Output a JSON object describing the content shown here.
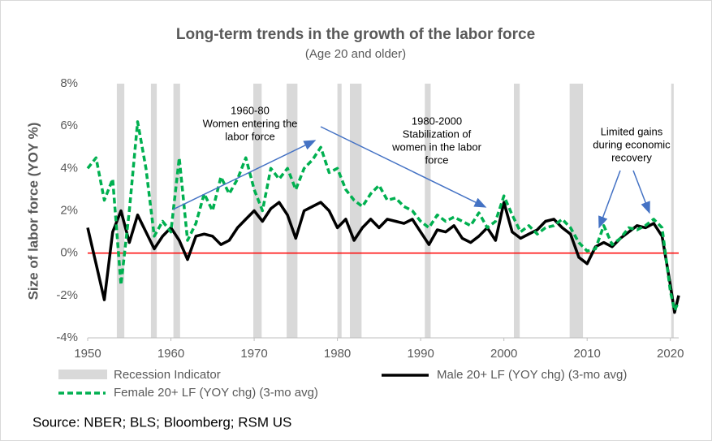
{
  "chart_data": {
    "type": "line",
    "title": "Long-term trends in the growth of the labor force",
    "subtitle": "(Age 20 and older)",
    "y_label": "Size of labor force (YOY %)",
    "source": "Source: NBER; BLS; Bloomberg; RSM US",
    "xlim": [
      1950,
      2021
    ],
    "xticks": [
      1950,
      1960,
      1970,
      1980,
      1990,
      2000,
      2010,
      2020
    ],
    "ylim": [
      -4,
      8
    ],
    "yticks": [
      {
        "value": -4,
        "label": "-4%"
      },
      {
        "value": -2,
        "label": "-2%"
      },
      {
        "value": 0,
        "label": "0%"
      },
      {
        "value": 2,
        "label": "2%"
      },
      {
        "value": 4,
        "label": "4%"
      },
      {
        "value": 6,
        "label": "6%"
      },
      {
        "value": 8,
        "label": "8%"
      }
    ],
    "hline": {
      "value": 0,
      "color": "#ff0000"
    },
    "recessions": {
      "name": "Recession Indicator",
      "color": "#d9d9d9",
      "periods": [
        [
          1953.5,
          1954.4
        ],
        [
          1957.6,
          1958.3
        ],
        [
          1960.3,
          1961.1
        ],
        [
          1969.9,
          1970.9
        ],
        [
          1973.9,
          1975.2
        ],
        [
          1980.0,
          1980.5
        ],
        [
          1981.5,
          1982.9
        ],
        [
          1990.5,
          1991.2
        ],
        [
          2001.2,
          2001.9
        ],
        [
          2007.9,
          2009.5
        ],
        [
          2020.1,
          2020.4
        ]
      ]
    },
    "x": [
      1950,
      1951,
      1952,
      1953,
      1954,
      1955,
      1956,
      1957,
      1958,
      1959,
      1960,
      1961,
      1962,
      1963,
      1964,
      1965,
      1966,
      1967,
      1968,
      1969,
      1970,
      1971,
      1972,
      1973,
      1974,
      1975,
      1976,
      1977,
      1978,
      1979,
      1980,
      1981,
      1982,
      1983,
      1984,
      1985,
      1986,
      1987,
      1988,
      1989,
      1990,
      1991,
      1992,
      1993,
      1994,
      1995,
      1996,
      1997,
      1998,
      1999,
      2000,
      2001,
      2002,
      2003,
      2004,
      2005,
      2006,
      2007,
      2008,
      2009,
      2010,
      2011,
      2012,
      2013,
      2014,
      2015,
      2016,
      2017,
      2018,
      2019,
      2020,
      2020.5,
      2021
    ],
    "series": [
      {
        "name": "Male 20+ LF (YOY chg) (3-mo avg)",
        "color": "#000000",
        "dashed": false,
        "values": [
          1.2,
          -0.5,
          -2.2,
          1.0,
          2.0,
          0.5,
          1.8,
          1.0,
          0.2,
          0.8,
          1.2,
          0.6,
          -0.3,
          0.8,
          0.9,
          0.8,
          0.4,
          0.6,
          1.2,
          1.6,
          2.0,
          1.5,
          2.1,
          2.4,
          1.8,
          0.7,
          2.0,
          2.2,
          2.4,
          2.0,
          1.2,
          1.6,
          0.6,
          1.2,
          1.6,
          1.2,
          1.6,
          1.5,
          1.4,
          1.6,
          1.0,
          0.4,
          1.1,
          1.0,
          1.3,
          0.7,
          0.5,
          0.8,
          1.2,
          0.6,
          2.4,
          1.0,
          0.7,
          0.9,
          1.1,
          1.5,
          1.6,
          1.2,
          0.9,
          -0.2,
          -0.5,
          0.3,
          0.5,
          0.3,
          0.7,
          1.0,
          1.3,
          1.2,
          1.4,
          0.8,
          -1.5,
          -2.8,
          -2.0
        ]
      },
      {
        "name": "Female 20+ LF (YOY chg) (3-mo avg)",
        "color": "#00b050",
        "dashed": true,
        "values": [
          4.0,
          4.5,
          2.5,
          3.5,
          -1.5,
          2.0,
          6.2,
          4.0,
          0.8,
          1.5,
          1.0,
          4.5,
          0.6,
          1.4,
          2.8,
          2.0,
          3.6,
          2.8,
          3.5,
          4.5,
          3.0,
          2.0,
          4.0,
          3.5,
          4.0,
          3.0,
          4.0,
          4.4,
          5.0,
          3.8,
          4.0,
          3.0,
          2.5,
          2.2,
          2.8,
          3.2,
          2.5,
          2.6,
          2.2,
          2.0,
          1.5,
          1.2,
          1.8,
          1.5,
          1.7,
          1.5,
          1.3,
          1.9,
          1.2,
          1.5,
          2.7,
          1.8,
          1.0,
          1.3,
          0.9,
          1.2,
          1.3,
          1.6,
          1.2,
          0.5,
          0.1,
          0.2,
          1.3,
          0.4,
          0.7,
          1.2,
          1.1,
          1.3,
          1.6,
          1.2,
          -1.8,
          -2.7,
          -2.3
        ]
      }
    ],
    "annotations": [
      {
        "lines": [
          "1960-80",
          "Women entering the",
          "labor force"
        ]
      },
      {
        "lines": [
          "1980-2000",
          "Stabilization of",
          "women in the labor",
          "force"
        ]
      },
      {
        "lines": [
          "Limited gains",
          "during economic",
          "recovery"
        ]
      }
    ]
  }
}
